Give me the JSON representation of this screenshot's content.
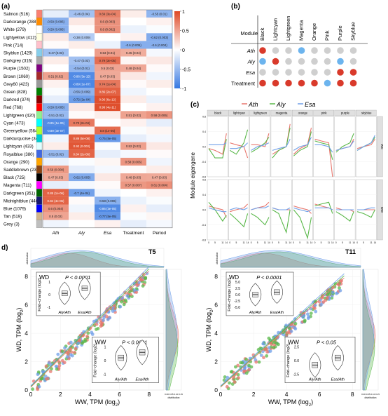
{
  "panels": {
    "a": "(a)",
    "b": "(b)",
    "c": "(c)",
    "d": "d)"
  },
  "chart_data": [
    {
      "type": "heatmap",
      "id": "a",
      "rows": [
        {
          "label": "Salmon (516)",
          "color": "#fa8072",
          "cells": [
            "",
            "-0.46 (0.04)",
            "0.69 (3e-04)",
            "",
            "-0.55 (0.01)"
          ]
        },
        {
          "label": "Darkorange (288)",
          "color": "#ff8c00",
          "cells": [
            "-0.59 (0.006)",
            "",
            "0.6 (0.003)",
            "",
            ""
          ]
        },
        {
          "label": "White (279)",
          "color": "#ffffff",
          "cells": [
            "-0.59 (0.006)",
            "",
            "0.6 (0.002)",
            "",
            ""
          ]
        },
        {
          "label": "Lightyellow (412)",
          "color": "#ffffe0",
          "cells": [
            "",
            "-0.38 (0.009)",
            "",
            "",
            "-0.62 (0.003)"
          ]
        },
        {
          "label": "Pink (714)",
          "color": "#ffc0cb",
          "cells": [
            "",
            "",
            "",
            "-0.6 (0.005)",
            "-0.6 (0.004)"
          ]
        },
        {
          "label": "Skyblue (1429)",
          "color": "#87ceeb",
          "cells": [
            "-0.47 (0.03)",
            "",
            "0.53 (0.01)",
            "0.45 (0.04)",
            ""
          ]
        },
        {
          "label": "Darkgrey (316)",
          "color": "#a9a9a9",
          "cells": [
            "",
            "-0.47 (0.03)",
            "0.79 (3e-05)",
            "",
            ""
          ]
        },
        {
          "label": "Purple (1502)",
          "color": "#800080",
          "cells": [
            "",
            "-0.54 (0.01)",
            "0.5 (0.02)",
            "0.48 (0.04)",
            ""
          ]
        },
        {
          "label": "Brown (1060)",
          "color": "#a52a2a",
          "cells": [
            "0.51 (0.02)",
            "-0.86 (3e-15)",
            "0.47 (0.03)",
            "",
            ""
          ]
        },
        {
          "label": "Grey60 (423)",
          "color": "#999999",
          "cells": [
            "",
            "-0.89 (1e-07)",
            "0.74 (1e-04)",
            "",
            ""
          ]
        },
        {
          "label": "Green (828)",
          "color": "#008000",
          "cells": [
            "",
            "-0.56 (0.009)",
            "0.86 (2e-07)",
            "",
            ""
          ]
        },
        {
          "label": "Darkred (374)",
          "color": "#8b0000",
          "cells": [
            "",
            "-0.72 (2e-04)",
            "0.96 (6e-12)",
            "",
            ""
          ]
        },
        {
          "label": "Red (768)",
          "color": "#ff0000",
          "cells": [
            "-0.59 (0.005)",
            "",
            "0.96 (4e-11)",
            "",
            ""
          ]
        },
        {
          "label": "Lightgreen (420)",
          "color": "#90ee90",
          "cells": [
            "-0.51 (0.02)",
            "",
            "",
            "0.51 (0.02)",
            "0.58 (0.006)"
          ]
        },
        {
          "label": "Cyan (473)",
          "color": "#00ffff",
          "cells": [
            "-0.85 (1e-06)",
            "0.73 (2e-04)",
            "",
            "",
            ""
          ]
        },
        {
          "label": "Greenyellow (564)",
          "color": "#adff2f",
          "cells": [
            "-0.89 (3e-07)",
            "",
            "0.8 (1e-05)",
            "",
            ""
          ]
        },
        {
          "label": "Darkturquoise (341)",
          "color": "#00ced1",
          "cells": [
            "",
            "0.89 (5e-08)",
            "-0.75 (8e-05)",
            "",
            ""
          ]
        },
        {
          "label": "Lightcyan (433)",
          "color": "#e0ffff",
          "cells": [
            "",
            "0.92 (0.003)",
            "",
            "0.52 (0.02)",
            ""
          ]
        },
        {
          "label": "Royalblue (380)",
          "color": "#4169e1",
          "cells": [
            "-0.51 (0.02)",
            "0.84 (2e-06)",
            "",
            "",
            ""
          ]
        },
        {
          "label": "Orange (290)",
          "color": "#ffa500",
          "cells": [
            "",
            "",
            "",
            "0.58 (0.006)",
            ""
          ]
        },
        {
          "label": "Saddlebrown (239)",
          "color": "#8b4513",
          "cells": [
            "0.56 (0.008)",
            "",
            "",
            "",
            ""
          ]
        },
        {
          "label": "Black (725)",
          "color": "#000000",
          "cells": [
            "0.47 (0.03)",
            "-0.62 (0.003)",
            "",
            "0.48 (0.03)",
            "0.47 (0.03)"
          ]
        },
        {
          "label": "Magenta (711)",
          "color": "#ff00ff",
          "cells": [
            "",
            "",
            "",
            "0.57 (0.007)",
            "0.61 (0.004)"
          ]
        },
        {
          "label": "Darkgreen (351)",
          "color": "#006400",
          "cells": [
            "0.85 (1e-06)",
            "-0.7 (4e-04)",
            "",
            "",
            ""
          ]
        },
        {
          "label": "Midnightblue (446)",
          "color": "#191970",
          "cells": [
            "0.84 (4e-06)",
            "",
            "-0.58 (0.006)",
            "",
            ""
          ]
        },
        {
          "label": "Blue (1079)",
          "color": "#0000ff",
          "cells": [
            "0.6 (0.004)",
            "",
            "-0.86 (3e-05)",
            "",
            ""
          ]
        },
        {
          "label": "Tan (519)",
          "color": "#d2b48c",
          "cells": [
            "0.5 (0.02)",
            "",
            "-0.77 (5e-05)",
            "",
            ""
          ]
        },
        {
          "label": "Grey (3)",
          "color": "#bebebe",
          "cells": [
            "",
            "",
            "",
            "",
            ""
          ]
        }
      ],
      "columns": [
        "Ath",
        "Aly",
        "Esa",
        "Treatment",
        "Period"
      ],
      "colorbar_ticks": [
        "1",
        "0.5",
        "0",
        "-0.5",
        "-1"
      ],
      "value_range": [
        -1,
        1
      ]
    },
    {
      "type": "table",
      "id": "b",
      "row_header": "Module",
      "columns": [
        "Black",
        "Lightcyan",
        "Lightgreen",
        "Magenta",
        "Orange",
        "Pink",
        "Purple",
        "Skyblue"
      ],
      "rows": [
        {
          "label": "Ath",
          "italic": true,
          "dots": [
            "red",
            "grey",
            "grey",
            "blue",
            "grey",
            "grey",
            "grey",
            "grey"
          ]
        },
        {
          "label": "Aly",
          "italic": true,
          "dots": [
            "blue",
            "red",
            "grey",
            "grey",
            "grey",
            "grey",
            "blue",
            "grey"
          ]
        },
        {
          "label": "Esa",
          "italic": true,
          "dots": [
            "grey",
            "grey",
            "grey",
            "grey",
            "grey",
            "grey",
            "red",
            "red"
          ]
        },
        {
          "label": "Treatment",
          "italic": false,
          "dots": [
            "red",
            "red",
            "red",
            "red",
            "red",
            "blue",
            "red",
            "red"
          ]
        }
      ],
      "dot_colors": {
        "red": "#d93a2b",
        "blue": "#6cb4ee",
        "grey": "#cfcfcf"
      }
    },
    {
      "type": "line",
      "id": "c",
      "ylabel": "Module eigengene",
      "legend": [
        "Ath",
        "Aly",
        "Esa"
      ],
      "series_colors": [
        "#e8766d",
        "#5ab84a",
        "#6f9fe8"
      ],
      "facet_columns": [
        "black",
        "lightcyan",
        "lightgreen",
        "magenta",
        "orange",
        "pink",
        "purple",
        "skyblue"
      ],
      "facet_rows": [
        "WD",
        "WW"
      ],
      "x": [
        0,
        5,
        11,
        14
      ],
      "x_tick_labels": [
        "0",
        "5",
        "11",
        "14"
      ],
      "ylim": [
        -0.8,
        0.8
      ],
      "y_ticks": [
        "0.8",
        "0.4",
        "0.0",
        "-0.4",
        "-0.8"
      ],
      "WD": [
        [
          [
            -0.05,
            -0.1,
            -0.2,
            0.35
          ],
          [
            -0.05,
            -0.3,
            -0.3,
            0.2
          ],
          [
            0.05,
            0.05,
            0.05,
            0.1
          ]
        ],
        [
          [
            0.1,
            0.05,
            0.0,
            -0.3
          ],
          [
            -0.1,
            -0.2,
            0.1,
            0.45
          ],
          [
            -0.05,
            -0.05,
            0.0,
            0.1
          ]
        ],
        [
          [
            0.05,
            0.05,
            0.0,
            0.35
          ],
          [
            -0.15,
            -0.05,
            0.1,
            0.25
          ],
          [
            -0.1,
            0.0,
            0.05,
            0.1
          ]
        ],
        [
          [
            -0.2,
            -0.1,
            0.0,
            0.6
          ],
          [
            -0.3,
            -0.1,
            0.0,
            0.5
          ],
          [
            -0.1,
            -0.05,
            0.0,
            0.2
          ]
        ],
        [
          [
            -0.2,
            -0.05,
            0.05,
            0.5
          ],
          [
            -0.25,
            -0.1,
            0.0,
            0.4
          ],
          [
            -0.1,
            0.0,
            0.05,
            0.25
          ]
        ],
        [
          [
            0.2,
            0.15,
            0.1,
            -0.8
          ],
          [
            0.15,
            0.1,
            0.05,
            -0.35
          ],
          [
            0.05,
            0.05,
            0.0,
            -0.15
          ]
        ],
        [
          [
            -0.1,
            -0.05,
            0.0,
            0.2
          ],
          [
            -0.15,
            0.0,
            0.1,
            0.35
          ],
          [
            -0.1,
            -0.05,
            0.0,
            0.15
          ]
        ],
        [
          [
            -0.05,
            0.0,
            0.05,
            0.2
          ],
          [
            -0.1,
            0.0,
            0.1,
            0.25
          ],
          [
            -0.1,
            0.0,
            0.1,
            0.3
          ]
        ]
      ],
      "WW": [
        [
          [
            0.1,
            0.05,
            0.0,
            -0.2
          ],
          [
            0.2,
            0.0,
            -0.3,
            -0.15
          ],
          [
            0.05,
            0.0,
            -0.05,
            -0.05
          ]
        ],
        [
          [
            -0.05,
            0.0,
            0.05,
            0.15
          ],
          [
            -0.1,
            -0.25,
            -0.45,
            -0.1
          ],
          [
            0.0,
            0.05,
            0.0,
            0.05
          ]
        ],
        [
          [
            0.0,
            0.05,
            0.1,
            0.2
          ],
          [
            -0.1,
            -0.2,
            -0.4,
            -0.2
          ],
          [
            0.0,
            0.05,
            0.05,
            0.1
          ]
        ],
        [
          [
            0.05,
            0.0,
            0.0,
            0.0
          ],
          [
            0.0,
            -0.1,
            -0.6,
            0.0
          ],
          [
            0.05,
            0.0,
            0.0,
            0.05
          ]
        ],
        [
          [
            0.1,
            0.05,
            0.0,
            -0.1
          ],
          [
            0.0,
            -0.2,
            -0.75,
            -0.2
          ],
          [
            0.05,
            0.0,
            -0.05,
            0.0
          ]
        ],
        [
          [
            0.15,
            0.1,
            0.05,
            0.0
          ],
          [
            0.1,
            0.15,
            0.2,
            -0.1
          ],
          [
            0.05,
            0.05,
            0.05,
            0.0
          ]
        ],
        [
          [
            0.05,
            0.0,
            0.0,
            -0.05
          ],
          [
            -0.05,
            -0.15,
            -0.3,
            -0.05
          ],
          [
            0.0,
            0.0,
            0.0,
            0.0
          ]
        ],
        [
          [
            0.0,
            0.0,
            0.0,
            0.0
          ],
          [
            -0.05,
            -0.1,
            -0.2,
            0.0
          ],
          [
            0.0,
            0.0,
            0.05,
            0.05
          ]
        ]
      ]
    },
    {
      "type": "scatter",
      "id": "d-T5",
      "title": "T5",
      "xlabel": "WW, TPM (log",
      "ylabel": "WD, TPM (log",
      "label_sub": "2",
      "xlim": [
        0,
        9
      ],
      "ylim": [
        0,
        8.5
      ],
      "x_ticks": [
        0,
        2,
        4,
        6,
        8
      ],
      "y_ticks": [
        0,
        2,
        4,
        6,
        8
      ],
      "top_density_label": "distribution",
      "side_density_label": "distribution",
      "density_ticks": [
        "0.00",
        "0.05",
        "0.10",
        "0.15"
      ],
      "insets": [
        {
          "name": "WD",
          "p": "P < 0.0001",
          "ylabel": "Fold−change (log2)",
          "groups": [
            "Aly/Ath",
            "Esa/Ath"
          ],
          "y_ticks": [
            "1",
            "0",
            "-1"
          ],
          "medians": [
            0.1,
            0.5
          ]
        },
        {
          "name": "WW",
          "p": "P < 0.0001",
          "ylabel": "Fold−change (log2)",
          "groups": [
            "Aly/Ath",
            "Esa/Ath"
          ],
          "y_ticks": [
            "1",
            "0",
            "-1"
          ],
          "medians": [
            0.2,
            0.6
          ]
        }
      ]
    },
    {
      "type": "scatter",
      "id": "d-T11",
      "title": "T11",
      "xlabel": "WW, TPM (log",
      "ylabel": "WD, TPM (log",
      "label_sub": "2",
      "xlim": [
        0,
        8.5
      ],
      "ylim": [
        0,
        8.5
      ],
      "x_ticks": [
        0,
        2,
        4,
        6,
        8
      ],
      "y_ticks": [
        0,
        2,
        4,
        6,
        8
      ],
      "top_density_label": "distribution",
      "side_density_label": "distribution",
      "density_ticks": [
        "0.00",
        "0.05",
        "0.10",
        "0.15"
      ],
      "insets": [
        {
          "name": "WD",
          "p": "P < 0.0001",
          "ylabel": "Fold−change (log2)",
          "groups": [
            "Aly/Ath",
            "Esa/Ath"
          ],
          "y_ticks": [
            "5.0",
            "2.5",
            "0.0",
            "-2.5",
            "-5.0"
          ],
          "medians": [
            0.0,
            1.0
          ]
        },
        {
          "name": "WW",
          "p": "P < 0.05",
          "ylabel": "Fold−change (log2)",
          "groups": [
            "Aly/Ath",
            "Esa/Ath"
          ],
          "y_ticks": [
            "2.5",
            "0.0",
            "-2.5"
          ],
          "medians": [
            -0.8,
            0.5
          ]
        }
      ]
    }
  ],
  "scatter_colors": [
    "#e8766d",
    "#5ab84a",
    "#6f9fe8"
  ]
}
